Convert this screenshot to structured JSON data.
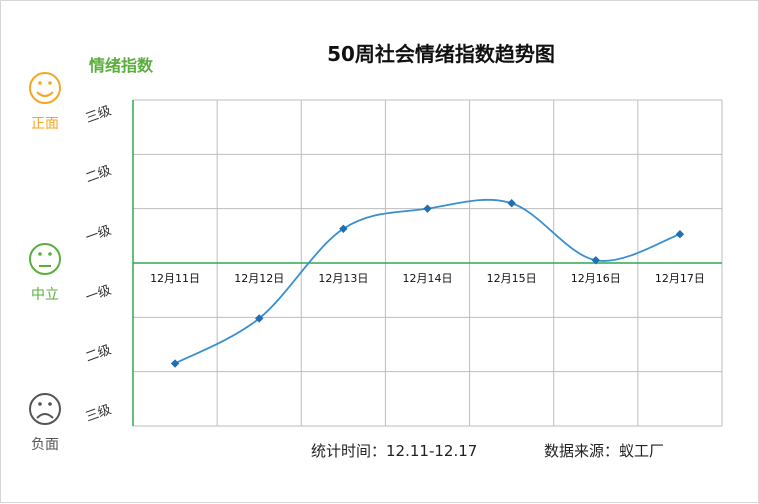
{
  "chart_data": {
    "type": "line",
    "title": "50周社会情绪指数趋势图",
    "ylabel": "情绪指数",
    "categories": [
      "12月11日",
      "12月12日",
      "12月13日",
      "12月14日",
      "12月15日",
      "12月16日",
      "12月17日"
    ],
    "values": [
      -1.85,
      -1.02,
      0.63,
      1.0,
      1.1,
      0.05,
      0.53
    ],
    "ylim": [
      -3,
      3
    ],
    "y_ticks": [
      {
        "value": 2.75,
        "label": "三级"
      },
      {
        "value": 1.65,
        "label": "二级"
      },
      {
        "value": 0.55,
        "label": "一级"
      },
      {
        "value": -0.55,
        "label": "一级"
      },
      {
        "value": -1.65,
        "label": "二级"
      },
      {
        "value": -2.75,
        "label": "三级"
      }
    ],
    "y_gridlines": [
      3,
      2,
      1,
      0,
      -1,
      -2,
      -3
    ],
    "grid": true,
    "line_color": "#3a8fd0",
    "marker_color": "#1f6fb5",
    "axis_color": "#2fa84f"
  },
  "moods": {
    "positive": {
      "label": "正面",
      "icon": "smile-icon",
      "color": "#f5a623"
    },
    "neutral": {
      "label": "中立",
      "icon": "neutral-face-icon",
      "color": "#5aae3c"
    },
    "negative": {
      "label": "负面",
      "icon": "frown-icon",
      "color": "#555555"
    }
  },
  "footer": {
    "period": "统计时间：12.11-12.17",
    "source": "数据来源：蚁工厂"
  }
}
